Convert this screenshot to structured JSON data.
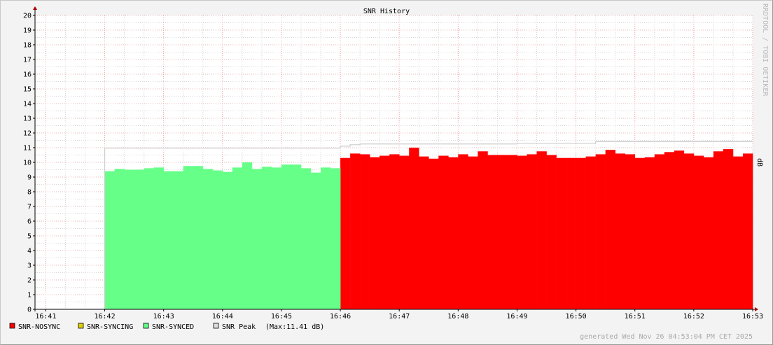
{
  "chart_data": {
    "type": "area",
    "title": "SNR History",
    "ylabel": "dB",
    "watermark": "RRDTOOL / TOBI OETIKER",
    "ylim": [
      0,
      20
    ],
    "xlim": [
      "16:40:49",
      "16:53:00"
    ],
    "yticks": [
      0,
      1,
      2,
      3,
      4,
      5,
      6,
      7,
      8,
      9,
      10,
      11,
      12,
      13,
      14,
      15,
      16,
      17,
      18,
      19,
      20
    ],
    "xticks": [
      "16:41",
      "16:42",
      "16:43",
      "16:44",
      "16:45",
      "16:46",
      "16:47",
      "16:48",
      "16:49",
      "16:50",
      "16:51",
      "16:52",
      "16:53"
    ],
    "grid": true,
    "step_seconds": 10,
    "series": [
      {
        "name": "SNR-NOSYNC",
        "color": "#ff0000",
        "start": "16:46:00",
        "values": [
          10.3,
          10.6,
          10.55,
          10.35,
          10.45,
          10.55,
          10.45,
          11.0,
          10.4,
          10.25,
          10.45,
          10.35,
          10.55,
          10.4,
          10.75,
          10.5,
          10.5,
          10.5,
          10.45,
          10.55,
          10.75,
          10.5,
          10.3,
          10.3,
          10.3,
          10.4,
          10.55,
          10.85,
          10.6,
          10.55,
          10.3,
          10.35,
          10.55,
          10.7,
          10.8,
          10.6,
          10.45,
          10.35,
          10.75,
          10.9,
          10.4,
          10.6
        ]
      },
      {
        "name": "SNR-SYNCING",
        "color": "#e0d000",
        "start": null,
        "values": []
      },
      {
        "name": "SNR-SYNCED",
        "color": "#66ff88",
        "start": "16:42:00",
        "values": [
          9.4,
          9.55,
          9.5,
          9.5,
          9.6,
          9.65,
          9.4,
          9.4,
          9.75,
          9.75,
          9.55,
          9.45,
          9.35,
          9.65,
          10.0,
          9.55,
          9.7,
          9.65,
          9.85,
          9.85,
          9.6,
          9.3,
          9.65,
          9.6
        ]
      },
      {
        "name": "SNR Peak",
        "color": "#cccccc",
        "line": true,
        "points": [
          [
            "16:42:00",
            10.97
          ],
          [
            "16:46:00",
            11.1
          ],
          [
            "16:46:10",
            11.2
          ],
          [
            "16:46:20",
            11.25
          ],
          [
            "16:49:00",
            11.3
          ],
          [
            "16:50:20",
            11.41
          ],
          [
            "16:53:00",
            11.41
          ]
        ]
      }
    ],
    "legend": [
      {
        "label": "SNR-NOSYNC",
        "color": "#ff0000"
      },
      {
        "label": "SNR-SYNCING",
        "color": "#e0d000"
      },
      {
        "label": "SNR-SYNCED",
        "color": "#66ff88"
      },
      {
        "label": "SNR Peak",
        "color": "#dddddd"
      }
    ],
    "peak_note": "(Max:11.41 dB)",
    "legend_placement": "bottom",
    "generated": "generated Wed Nov 26 04:53:04 PM CET 2025"
  }
}
